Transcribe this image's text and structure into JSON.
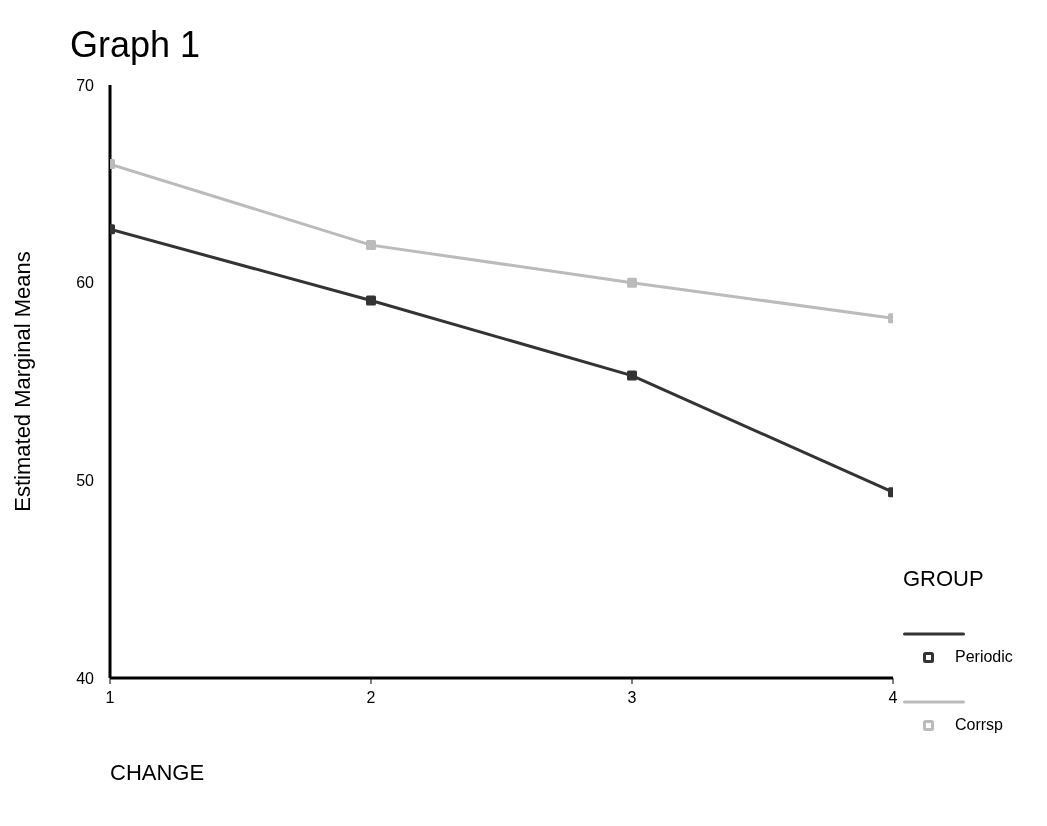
{
  "chart_data": {
    "type": "line",
    "title": "Graph 1",
    "xlabel": "CHANGE",
    "ylabel": "Estimated Marginal Means",
    "legend_title": "GROUP",
    "x": [
      1,
      2,
      3,
      4
    ],
    "xlim": [
      1,
      4
    ],
    "xticks": [
      1,
      2,
      3,
      4
    ],
    "ylim": [
      40,
      70
    ],
    "yticks": [
      40,
      50,
      60,
      70
    ],
    "series": [
      {
        "name": "Periodic",
        "color": "#333333",
        "values": [
          62.7,
          59.1,
          55.3,
          49.4
        ]
      },
      {
        "name": "Corrsp",
        "color": "#bbbbbb",
        "values": [
          66.0,
          61.9,
          60.0,
          58.2
        ]
      }
    ],
    "marker": "square",
    "line_style": "solid",
    "grid": false,
    "legend": "right"
  }
}
